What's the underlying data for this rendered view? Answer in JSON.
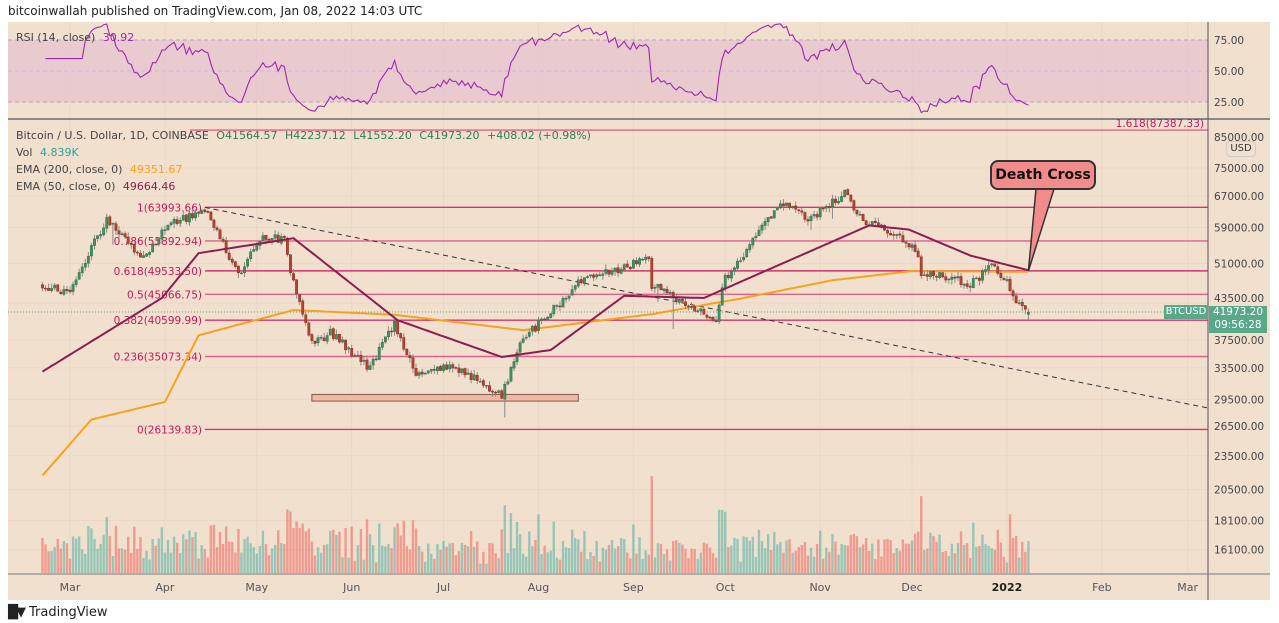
{
  "header": {
    "publisher_line": "bitcoinwallah published on TradingView.com, Jan 08, 2022 14:03 UTC"
  },
  "legend": {
    "rsi_label": "RSI (14, close)",
    "rsi_value": "30.92",
    "symbol": "Bitcoin / U.S. Dollar, 1D, COINBASE",
    "open": "O41564.57",
    "high": "H42237.12",
    "low": "L41552.20",
    "close": "C41973.20",
    "change": "+408.02 (+0.98%)",
    "vol_label": "Vol",
    "vol_value": "4.839K",
    "ema200_label": "EMA (200, close, 0)",
    "ema200_value": "49351.67",
    "ema50_label": "EMA (50, close, 0)",
    "ema50_value": "49664.46"
  },
  "annotation": {
    "callout_text": "Death Cross"
  },
  "price_tags": {
    "symbol": "BTCUSD",
    "price": "41973.20",
    "countdown": "09:56:28",
    "currency": "USD"
  },
  "brand": {
    "name": "TradingView"
  },
  "colors": {
    "background": "#f2e0cf",
    "up": "#3f8f5f",
    "down": "#b5412f",
    "ema200": "#f7a21b",
    "ema50": "#8b1e4f",
    "rsi": "#9c27b0",
    "fib": "#d8336c",
    "tag": "#5aa88a"
  },
  "chart_data": {
    "type": "candlestick",
    "scale": "log",
    "grid": true,
    "x_ticks": [
      "Mar",
      "Apr",
      "May",
      "Jun",
      "Jul",
      "Aug",
      "Sep",
      "Oct",
      "Nov",
      "Dec",
      "2022",
      "Feb",
      "Mar"
    ],
    "x_tick_dates": [
      "2021-03-01",
      "2021-04-01",
      "2021-05-01",
      "2021-06-01",
      "2021-07-01",
      "2021-08-01",
      "2021-09-01",
      "2021-10-01",
      "2021-11-01",
      "2021-12-01",
      "2022-01-01",
      "2022-02-01",
      "2022-03-01"
    ],
    "y_ticks": [
      "75000.00",
      "67000.00",
      "59000.00",
      "51000.00",
      "43500.00",
      "37500.00",
      "33500.00",
      "29500.00",
      "26500.00",
      "23500.00",
      "20500.00",
      "18100.00",
      "16100.00"
    ],
    "y_top_label": "85000.00",
    "rsi_ticks": [
      "75.00",
      "50.00",
      "25.00"
    ],
    "close_series": [
      [
        "2021-02-20",
        47000
      ],
      [
        "2021-02-28",
        45000
      ],
      [
        "2021-03-13",
        61000
      ],
      [
        "2021-03-25",
        52000
      ],
      [
        "2021-04-01",
        59000
      ],
      [
        "2021-04-14",
        63500
      ],
      [
        "2021-04-25",
        49000
      ],
      [
        "2021-05-03",
        57000
      ],
      [
        "2021-05-10",
        56000
      ],
      [
        "2021-05-12",
        49500
      ],
      [
        "2021-05-19",
        37000
      ],
      [
        "2021-05-25",
        38500
      ],
      [
        "2021-06-07",
        33500
      ],
      [
        "2021-06-15",
        40000
      ],
      [
        "2021-06-22",
        32500
      ],
      [
        "2021-07-01",
        33500
      ],
      [
        "2021-07-08",
        33000
      ],
      [
        "2021-07-20",
        29800
      ],
      [
        "2021-07-26",
        37000
      ],
      [
        "2021-08-01",
        40000
      ],
      [
        "2021-08-14",
        47000
      ],
      [
        "2021-08-22",
        49000
      ],
      [
        "2021-09-06",
        52000
      ],
      [
        "2021-09-07",
        46800
      ],
      [
        "2021-09-20",
        43000
      ],
      [
        "2021-09-28",
        41000
      ],
      [
        "2021-10-01",
        48000
      ],
      [
        "2021-10-15",
        61000
      ],
      [
        "2021-10-20",
        65000
      ],
      [
        "2021-10-28",
        61000
      ],
      [
        "2021-11-09",
        67500
      ],
      [
        "2021-11-16",
        60000
      ],
      [
        "2021-11-25",
        58000
      ],
      [
        "2021-12-03",
        53000
      ],
      [
        "2021-12-04",
        49000
      ],
      [
        "2021-12-14",
        48000
      ],
      [
        "2021-12-20",
        46800
      ],
      [
        "2021-12-27",
        50800
      ],
      [
        "2022-01-01",
        47500
      ],
      [
        "2022-01-05",
        43000
      ],
      [
        "2022-01-08",
        41973.2
      ]
    ],
    "ema200_series": [
      [
        "2021-02-20",
        21700
      ],
      [
        "2021-03-08",
        27200
      ],
      [
        "2021-04-01",
        29200
      ],
      [
        "2021-04-12",
        38200
      ],
      [
        "2021-05-13",
        42300
      ],
      [
        "2021-06-15",
        41500
      ],
      [
        "2021-07-27",
        39000
      ],
      [
        "2021-09-07",
        41600
      ],
      [
        "2021-10-07",
        44400
      ],
      [
        "2021-11-05",
        47700
      ],
      [
        "2021-12-01",
        49500
      ],
      [
        "2022-01-08",
        49351.67
      ]
    ],
    "ema50_series": [
      [
        "2021-02-20",
        33000
      ],
      [
        "2021-03-31",
        44400
      ],
      [
        "2021-04-12",
        53200
      ],
      [
        "2021-05-13",
        56500
      ],
      [
        "2021-06-16",
        40600
      ],
      [
        "2021-07-20",
        35000
      ],
      [
        "2021-08-05",
        36000
      ],
      [
        "2021-08-29",
        44800
      ],
      [
        "2021-09-24",
        44400
      ],
      [
        "2021-10-14",
        49500
      ],
      [
        "2021-11-17",
        59500
      ],
      [
        "2021-11-30",
        58500
      ],
      [
        "2021-12-20",
        52700
      ],
      [
        "2022-01-08",
        49664.46
      ]
    ],
    "fib_levels": [
      {
        "label": "1.618(87387.33)",
        "price": 87387.33
      },
      {
        "label": "1(63993.66)",
        "price": 63993.66
      },
      {
        "label": "0.786(55892.94)",
        "price": 55892.94
      },
      {
        "label": "0.618(49533.50)",
        "price": 49533.5
      },
      {
        "label": "0.5(45066.75)",
        "price": 45066.75
      },
      {
        "label": "0.382(40599.99)",
        "price": 40599.99
      },
      {
        "label": "0.236(35073.34)",
        "price": 35073.34
      },
      {
        "label": "0(26139.83)",
        "price": 26139.83
      }
    ],
    "trendline": [
      [
        "2021-04-14",
        63993.66
      ],
      [
        "2022-03-10",
        28500
      ]
    ],
    "support_box": {
      "from": "2021-05-19",
      "to": "2021-08-14",
      "low": 29300,
      "high": 30100
    },
    "death_cross_point": [
      "2022-01-08",
      49500
    ]
  }
}
